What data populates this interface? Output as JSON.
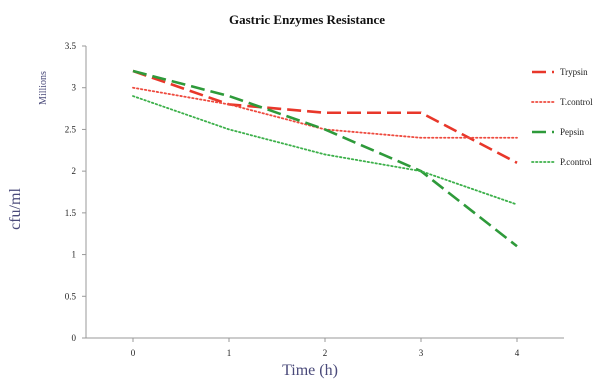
{
  "chart_data": {
    "type": "line",
    "title": "Gastric Enzymes Resistance",
    "xlabel": "Time (h)",
    "ylabel": "cfu/ml",
    "y_units_label": "Millions",
    "x": [
      0,
      1,
      2,
      3,
      4
    ],
    "x_tick_labels": [
      "0",
      "1",
      "2",
      "3",
      "4"
    ],
    "ylim": [
      0,
      3.5
    ],
    "y_ticks": [
      0,
      0.5,
      1,
      1.5,
      2,
      2.5,
      3,
      3.5
    ],
    "y_tick_labels": [
      "0",
      "0.5",
      "1",
      "1.5",
      "2",
      "2.5",
      "3",
      "3.5"
    ],
    "grid": false,
    "legend_position": "right",
    "series": [
      {
        "name": "Trypsin",
        "values": [
          3.2,
          2.8,
          2.7,
          2.7,
          2.1
        ],
        "color": "#e8372a",
        "style": "long-dash"
      },
      {
        "name": "T.control",
        "values": [
          3.0,
          2.8,
          2.5,
          2.4,
          2.4
        ],
        "color": "#ee4a3e",
        "style": "dotted"
      },
      {
        "name": "Pepsin",
        "values": [
          3.2,
          2.9,
          2.5,
          2.0,
          1.1
        ],
        "color": "#2e9a3a",
        "style": "long-dash"
      },
      {
        "name": "P.control",
        "values": [
          2.9,
          2.5,
          2.2,
          2.0,
          1.6
        ],
        "color": "#3cb04a",
        "style": "dotted"
      }
    ]
  }
}
